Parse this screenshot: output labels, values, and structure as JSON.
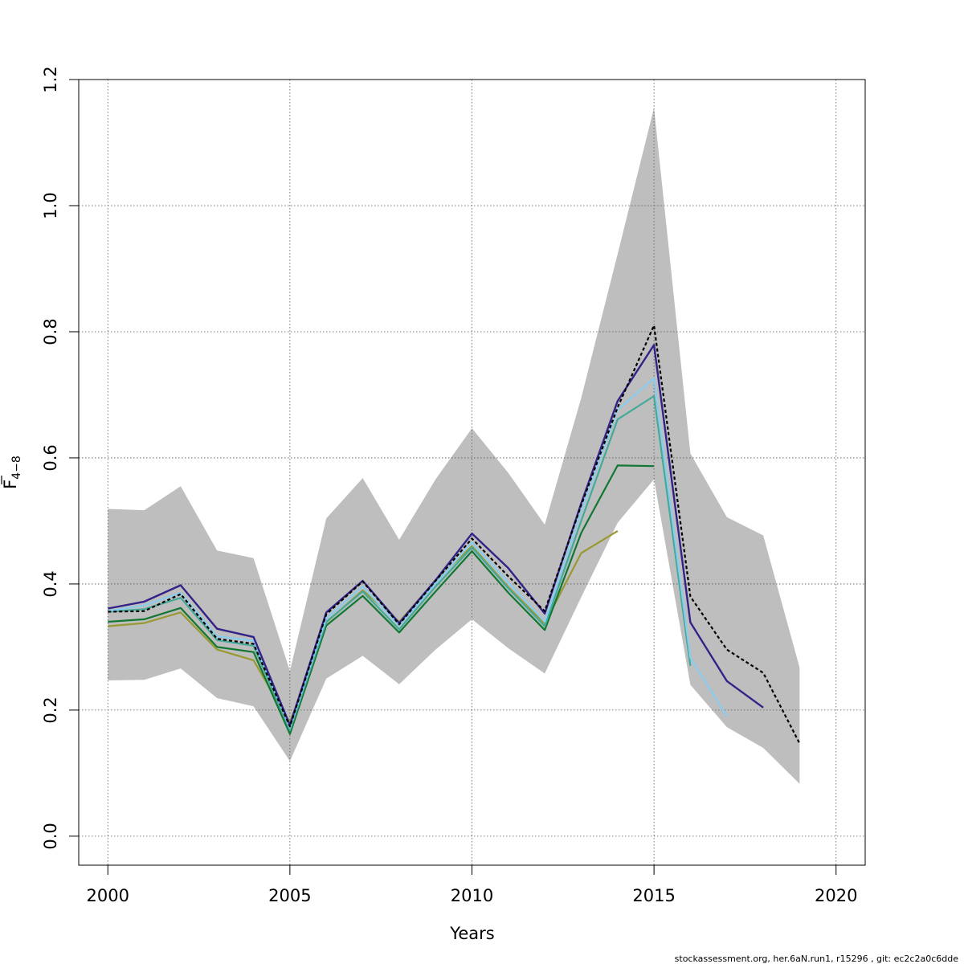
{
  "chart_data": {
    "type": "line",
    "xlabel": "Years",
    "ylabel_main": "F",
    "ylabel_sub": "4−8",
    "xlim": [
      1999.2,
      2020.8
    ],
    "ylim": [
      -0.046,
      1.2
    ],
    "xticks": [
      2000,
      2005,
      2010,
      2015,
      2020
    ],
    "yticks": [
      0.0,
      0.2,
      0.4,
      0.6,
      0.8,
      1.0,
      1.2
    ],
    "xtick_labels": [
      "2000",
      "2005",
      "2010",
      "2015",
      "2020"
    ],
    "ytick_labels": [
      "0.0",
      "0.2",
      "0.4",
      "0.6",
      "0.8",
      "1.0",
      "1.2"
    ],
    "grid": true,
    "band": {
      "color": "#bebebe",
      "x": [
        2000,
        2001,
        2002,
        2003,
        2004,
        2005,
        2006,
        2007,
        2008,
        2009,
        2010,
        2011,
        2012,
        2013,
        2014,
        2015,
        2016,
        2017,
        2018,
        2019
      ],
      "upper": [
        0.519,
        0.517,
        0.555,
        0.453,
        0.441,
        0.262,
        0.504,
        0.568,
        0.47,
        0.566,
        0.647,
        0.576,
        0.494,
        0.695,
        0.923,
        1.155,
        0.607,
        0.506,
        0.477,
        0.267
      ],
      "lower": [
        0.247,
        0.248,
        0.266,
        0.219,
        0.206,
        0.119,
        0.25,
        0.286,
        0.241,
        0.296,
        0.344,
        0.298,
        0.258,
        0.379,
        0.497,
        0.566,
        0.24,
        0.173,
        0.14,
        0.083
      ]
    },
    "series": [
      {
        "color": "#999933",
        "dashed": false,
        "width": 2.2,
        "x": [
          2000,
          2001,
          2002,
          2003,
          2004,
          2005,
          2006,
          2007,
          2008,
          2009,
          2010,
          2011,
          2012,
          2013,
          2014
        ],
        "values": [
          0.333,
          0.338,
          0.355,
          0.296,
          0.279,
          0.18,
          0.339,
          0.39,
          0.34,
          0.405,
          0.46,
          0.395,
          0.337,
          0.449,
          0.484
        ]
      },
      {
        "color": "#117733",
        "dashed": false,
        "width": 2.2,
        "x": [
          2000,
          2001,
          2002,
          2003,
          2004,
          2005,
          2006,
          2007,
          2008,
          2009,
          2010,
          2011,
          2012,
          2013,
          2014,
          2015
        ],
        "values": [
          0.34,
          0.344,
          0.362,
          0.3,
          0.292,
          0.162,
          0.334,
          0.381,
          0.323,
          0.388,
          0.452,
          0.386,
          0.327,
          0.481,
          0.588,
          0.587
        ]
      },
      {
        "color": "#44aa99",
        "dashed": false,
        "width": 2.2,
        "x": [
          2000,
          2001,
          2002,
          2003,
          2004,
          2005,
          2006,
          2007,
          2008,
          2009,
          2010,
          2011,
          2012,
          2013,
          2014,
          2015,
          2016
        ],
        "values": [
          0.356,
          0.36,
          0.378,
          0.311,
          0.302,
          0.168,
          0.34,
          0.388,
          0.328,
          0.396,
          0.458,
          0.393,
          0.333,
          0.5,
          0.661,
          0.698,
          0.27
        ]
      },
      {
        "color": "#88ccee",
        "dashed": false,
        "width": 2.2,
        "x": [
          2000,
          2001,
          2002,
          2003,
          2004,
          2005,
          2006,
          2007,
          2008,
          2009,
          2010,
          2011,
          2012,
          2013,
          2014,
          2015,
          2016,
          2017
        ],
        "values": [
          0.357,
          0.366,
          0.386,
          0.317,
          0.31,
          0.172,
          0.346,
          0.396,
          0.334,
          0.401,
          0.466,
          0.402,
          0.34,
          0.515,
          0.676,
          0.726,
          0.283,
          0.19
        ]
      },
      {
        "color": "#332288",
        "dashed": false,
        "width": 2.4,
        "x": [
          2000,
          2001,
          2002,
          2003,
          2004,
          2005,
          2006,
          2007,
          2008,
          2009,
          2010,
          2011,
          2012,
          2013,
          2014,
          2015,
          2016,
          2017,
          2018
        ],
        "values": [
          0.361,
          0.372,
          0.398,
          0.329,
          0.316,
          0.176,
          0.355,
          0.405,
          0.338,
          0.406,
          0.48,
          0.425,
          0.353,
          0.528,
          0.69,
          0.779,
          0.339,
          0.246,
          0.204
        ]
      },
      {
        "color": "#000000",
        "dashed": true,
        "width": 2.2,
        "x": [
          2000,
          2001,
          2002,
          2003,
          2004,
          2005,
          2006,
          2007,
          2008,
          2009,
          2010,
          2011,
          2012,
          2013,
          2014,
          2015,
          2016,
          2017,
          2018,
          2019
        ],
        "values": [
          0.356,
          0.357,
          0.384,
          0.313,
          0.305,
          0.174,
          0.352,
          0.404,
          0.336,
          0.405,
          0.472,
          0.412,
          0.357,
          0.525,
          0.68,
          0.81,
          0.38,
          0.296,
          0.259,
          0.147
        ]
      }
    ]
  },
  "footer": {
    "text": "stockassessment.org, her.6aN.run1, r15296 , git: ec2c2a0c6dde"
  }
}
